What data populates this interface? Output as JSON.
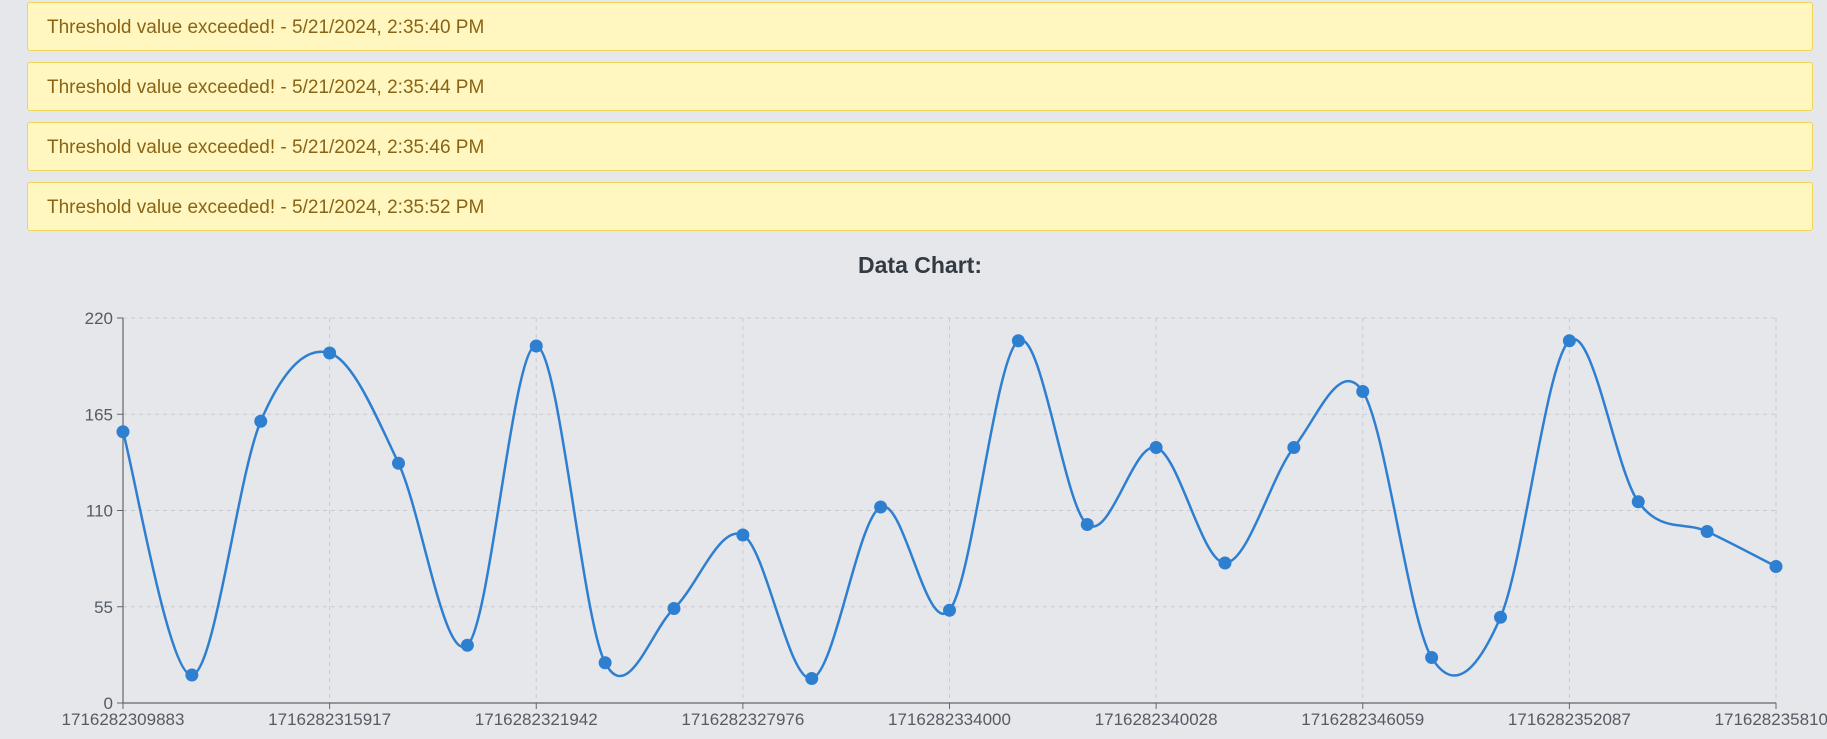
{
  "alerts": [
    {
      "text": "Threshold value exceeded! - 5/21/2024, 2:35:40 PM"
    },
    {
      "text": "Threshold value exceeded! - 5/21/2024, 2:35:44 PM"
    },
    {
      "text": "Threshold value exceeded! - 5/21/2024, 2:35:46 PM"
    },
    {
      "text": "Threshold value exceeded! - 5/21/2024, 2:35:52 PM"
    }
  ],
  "chart_data": {
    "type": "line",
    "title": "Data Chart:",
    "xlabel": "",
    "ylabel": "",
    "x_ticks": [
      "1716282309883",
      "1716282315917",
      "1716282321942",
      "1716282327976",
      "1716282334000",
      "1716282340028",
      "1716282346059",
      "1716282352087",
      "1716282358100"
    ],
    "y_ticks": [
      0,
      55,
      110,
      165,
      220
    ],
    "ylim": [
      0,
      220
    ],
    "grid": true,
    "line_color": "#2f7fd1",
    "series": [
      {
        "values": [
          155,
          16,
          161,
          200,
          137,
          33,
          204,
          23,
          54,
          96,
          14,
          112,
          53,
          207,
          102,
          146,
          80,
          146,
          178,
          26,
          49,
          207,
          115,
          98,
          78
        ]
      }
    ]
  }
}
